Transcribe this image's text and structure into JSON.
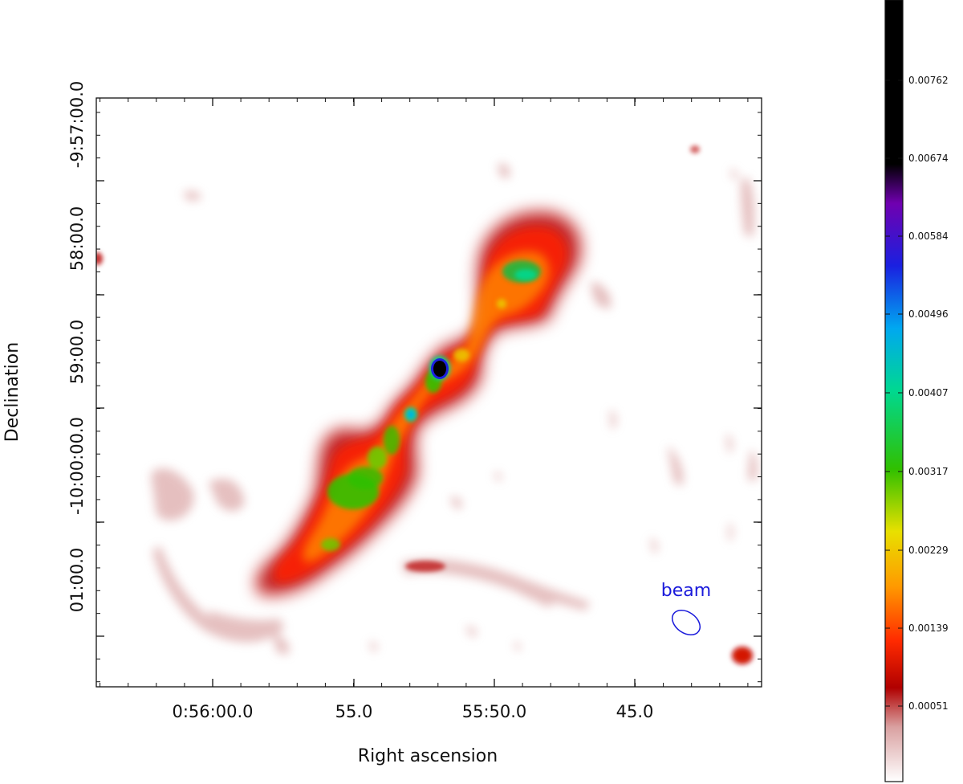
{
  "chart_data": {
    "type": "heatmap",
    "title": "",
    "xlabel": "Right ascension",
    "ylabel": "Declination",
    "x_ticks": [
      "0:56:00.0",
      "55.0",
      "55:50.0",
      "45.0"
    ],
    "y_ticks": [
      "-9:57:00.0",
      "58:00.0",
      "59:00.0",
      "-10:00:00.0",
      "01:00.0"
    ],
    "colorbar": {
      "ticks": [
        "0.00762",
        "0.00674",
        "0.00584",
        "0.00496",
        "0.00407",
        "0.00317",
        "0.00229",
        "0.00139",
        "0.00051"
      ],
      "colormap": [
        {
          "stop": 0.0,
          "color": "#ffffff"
        },
        {
          "stop": 0.07,
          "color": "#d9a0a0"
        },
        {
          "stop": 0.12,
          "color": "#b00000"
        },
        {
          "stop": 0.18,
          "color": "#ff2a00"
        },
        {
          "stop": 0.25,
          "color": "#ff9a00"
        },
        {
          "stop": 0.32,
          "color": "#e8e000"
        },
        {
          "stop": 0.4,
          "color": "#30c000"
        },
        {
          "stop": 0.5,
          "color": "#00d890"
        },
        {
          "stop": 0.58,
          "color": "#00a8f0"
        },
        {
          "stop": 0.66,
          "color": "#1a20e0"
        },
        {
          "stop": 0.74,
          "color": "#7000b0"
        },
        {
          "stop": 0.79,
          "color": "#000000"
        },
        {
          "stop": 1.0,
          "color": "#000000"
        }
      ]
    },
    "annotations": [
      "beam"
    ]
  }
}
